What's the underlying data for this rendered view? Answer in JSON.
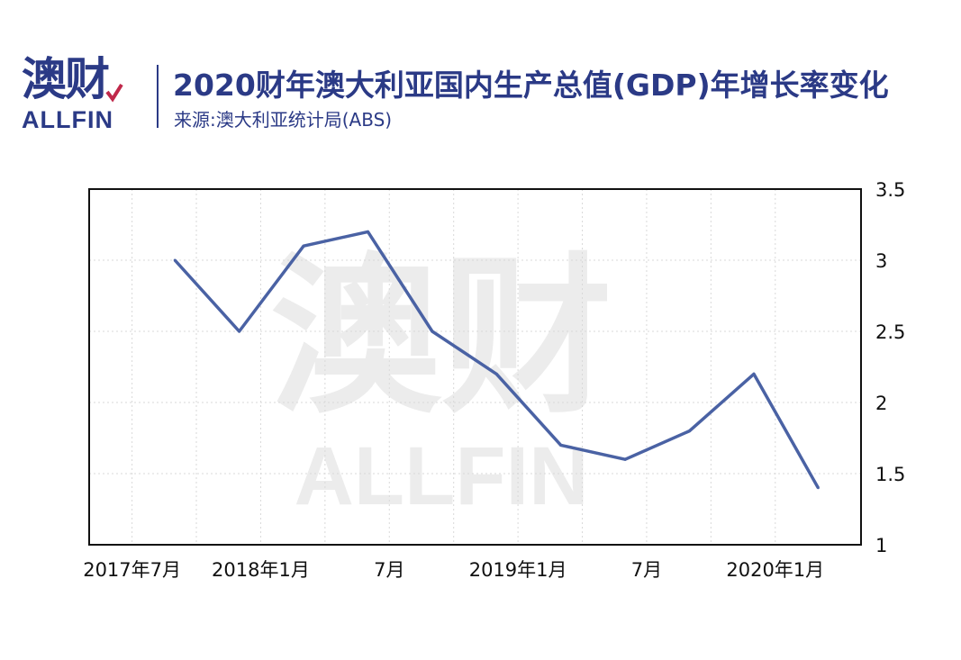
{
  "header": {
    "logo_cn": "澳财",
    "logo_en": "ALLFIN",
    "title": "2020财年澳大利亚国内生产总值(GDP)年增长率变化",
    "subtitle": "来源:澳大利亚统计局(ABS)"
  },
  "watermark": {
    "cn": "澳财",
    "en": "ALLFIN"
  },
  "colors": {
    "brand": "#2b3a86",
    "line": "#4a62a4",
    "grid": "#d9d9d9",
    "accent": "#c0284a"
  },
  "chart_data": {
    "type": "line",
    "title": "2020财年澳大利亚国内生产总值(GDP)年增长率变化",
    "xlabel": "",
    "ylabel": "",
    "ylim": [
      1,
      3.5
    ],
    "y_axis_side": "right",
    "grid": true,
    "x_tick_labels": [
      "2017年7月",
      "2018年1月",
      "7月",
      "2019年1月",
      "7月",
      "2020年1月"
    ],
    "x": [
      "2017-09",
      "2017-12",
      "2018-03",
      "2018-06",
      "2018-09",
      "2018-12",
      "2019-03",
      "2019-06",
      "2019-09",
      "2019-12",
      "2020-03"
    ],
    "series": [
      {
        "values": [
          3.0,
          2.5,
          3.1,
          3.2,
          2.5,
          2.2,
          1.7,
          1.6,
          1.8,
          2.2,
          1.4
        ]
      }
    ],
    "y_ticks": [
      "1",
      "1.5",
      "2",
      "2.5",
      "3",
      "3.5"
    ]
  }
}
